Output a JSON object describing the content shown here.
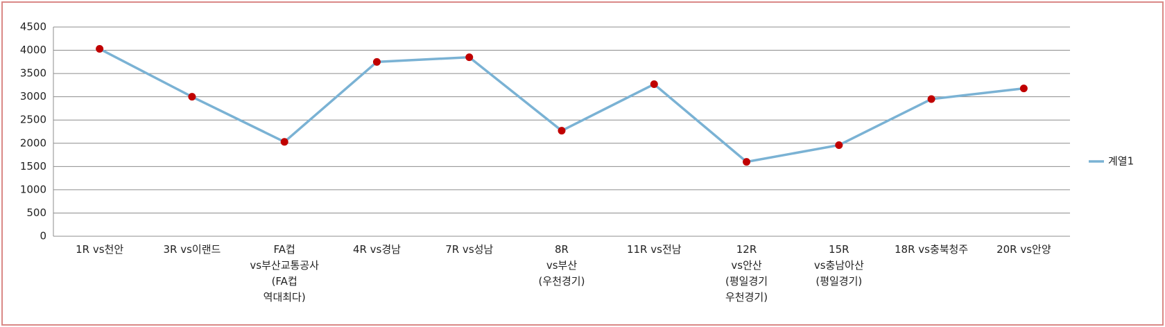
{
  "chart_data": {
    "type": "line",
    "categories": [
      "1R vs천안",
      "3R vs이랜드",
      "FA컵\nvs부산교통공사\n(FA컵\n역대최다)",
      "4R vs경남",
      "7R vs성남",
      "8R\nvs부산\n(우천경기)",
      "11R vs전남",
      "12R\nvs안산\n(평일경기\n우천경기)",
      "15R\nvs충남아산\n(평일경기)",
      "18R vs충북청주",
      "20R vs안양"
    ],
    "series": [
      {
        "name": "계열1",
        "color": "#7ab2d4",
        "marker_color": "#c00000",
        "values": [
          4030,
          3000,
          2030,
          3750,
          3850,
          2270,
          3270,
          1600,
          1960,
          2950,
          3180
        ]
      }
    ],
    "ylim": [
      0,
      4500
    ],
    "yticks": [
      0,
      500,
      1000,
      1500,
      2000,
      2500,
      3000,
      3500,
      4000,
      4500
    ],
    "grid": true,
    "legend": "right"
  }
}
